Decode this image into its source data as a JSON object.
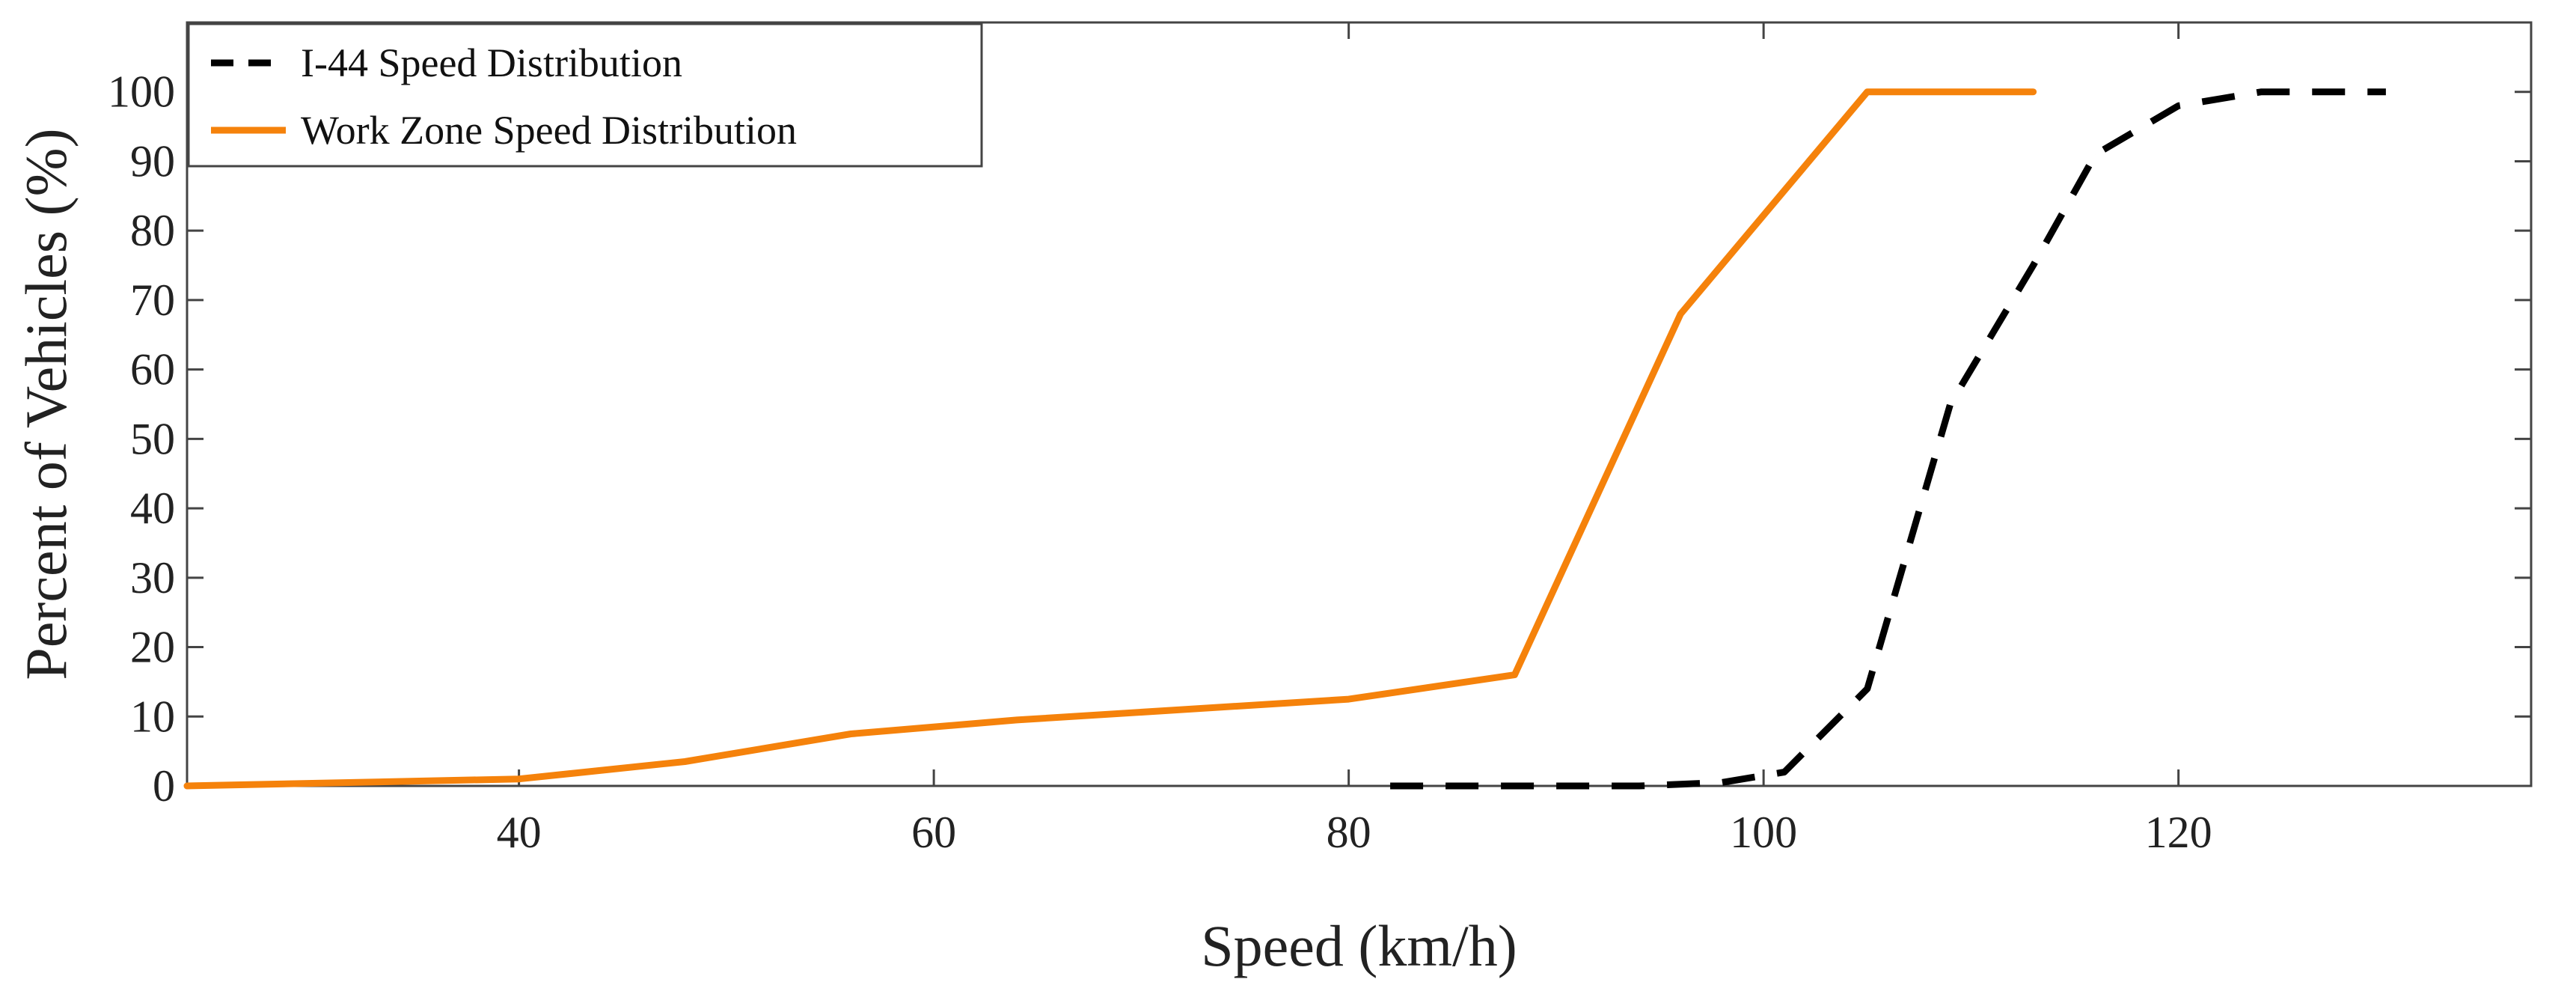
{
  "chart_data": {
    "type": "line",
    "xlabel": "Speed (km/h)",
    "ylabel": "Percent of Vehicles (%)",
    "xlim": [
      24,
      137
    ],
    "ylim": [
      0,
      110
    ],
    "xticks": [
      40,
      60,
      80,
      100,
      120
    ],
    "yticks": [
      0,
      10,
      20,
      30,
      40,
      50,
      60,
      70,
      80,
      90,
      100
    ],
    "grid": false,
    "legend_position": "top-left",
    "series": [
      {
        "name": "I-44 Speed Distribution",
        "color": "#000000",
        "style": "dashed",
        "x": [
          82,
          88,
          94,
          98,
          101,
          105,
          109,
          113,
          116,
          120,
          124,
          130
        ],
        "y": [
          0,
          0,
          0,
          0.5,
          2,
          14,
          55,
          75,
          91,
          98,
          100,
          100
        ]
      },
      {
        "name": "Work Zone Speed Distribution",
        "color": "#F5820B",
        "style": "solid",
        "x": [
          24,
          32,
          40,
          48,
          56,
          64,
          72,
          80,
          88,
          96,
          105,
          113
        ],
        "y": [
          0,
          0.5,
          1,
          3.5,
          7.5,
          9.5,
          11,
          12.5,
          16,
          68,
          100,
          100
        ]
      }
    ]
  }
}
